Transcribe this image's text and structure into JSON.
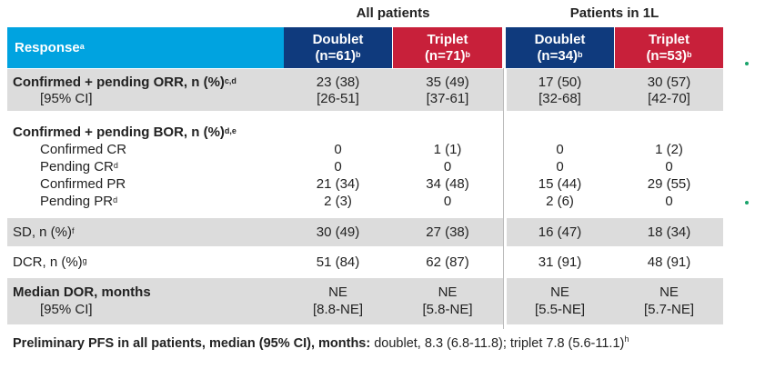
{
  "groups": {
    "all": "All patients",
    "first_line": "Patients in 1L"
  },
  "header": {
    "response": "Response",
    "response_sup": "a",
    "cols": [
      {
        "name": "Doublet",
        "n": "(n=61)",
        "sup": "b",
        "color": "#0f3a7d"
      },
      {
        "name": "Triplet",
        "n": "(n=71)",
        "sup": "b",
        "color": "#c8203a"
      },
      {
        "name": "Doublet",
        "n": "(n=34)",
        "sup": "b",
        "color": "#0f3a7d"
      },
      {
        "name": "Triplet",
        "n": "(n=53)",
        "sup": "b",
        "color": "#c8203a"
      }
    ],
    "response_color": "#00a3e0"
  },
  "orr": {
    "label": "Confirmed + pending ORR, n (%)",
    "sup": "c,d",
    "ci_label": "[95% CI]",
    "values": [
      "23 (38)",
      "35 (49)",
      "17 (50)",
      "30 (57)"
    ],
    "ci": [
      "[26-51]",
      "[37-61]",
      "[32-68]",
      "[42-70]"
    ]
  },
  "bor": {
    "label": "Confirmed + pending BOR, n (%)",
    "sup": "d,e",
    "items": [
      {
        "label": "Confirmed CR",
        "sup": "",
        "values": [
          "0",
          "1 (1)",
          "0",
          "1 (2)"
        ]
      },
      {
        "label": "Pending CR",
        "sup": "d",
        "values": [
          "0",
          "0",
          "0",
          "0"
        ]
      },
      {
        "label": "Confirmed PR",
        "sup": "",
        "values": [
          "21 (34)",
          "34 (48)",
          "15 (44)",
          "29 (55)"
        ]
      },
      {
        "label": "Pending PR",
        "sup": "d",
        "values": [
          "2 (3)",
          "0",
          "2 (6)",
          "0"
        ]
      }
    ]
  },
  "sd": {
    "label": "SD, n (%)",
    "sup": "f",
    "values": [
      "30 (49)",
      "27 (38)",
      "16 (47)",
      "18 (34)"
    ]
  },
  "dcr": {
    "label": "DCR, n (%)",
    "sup": "g",
    "values": [
      "51 (84)",
      "62 (87)",
      "31 (91)",
      "48 (91)"
    ]
  },
  "dor": {
    "label": "Median DOR, months",
    "ci_label": "[95% CI]",
    "values": [
      "NE",
      "NE",
      "NE",
      "NE"
    ],
    "ci": [
      "[8.8-NE]",
      "[5.8-NE]",
      "[5.5-NE]",
      "[5.7-NE]"
    ]
  },
  "footer": {
    "bold": "Preliminary PFS in all patients, median (95% CI), months:",
    "text": " doublet, 8.3 (6.8-11.8); triplet 7.8 (5.6-11.1)",
    "sup": "h"
  }
}
